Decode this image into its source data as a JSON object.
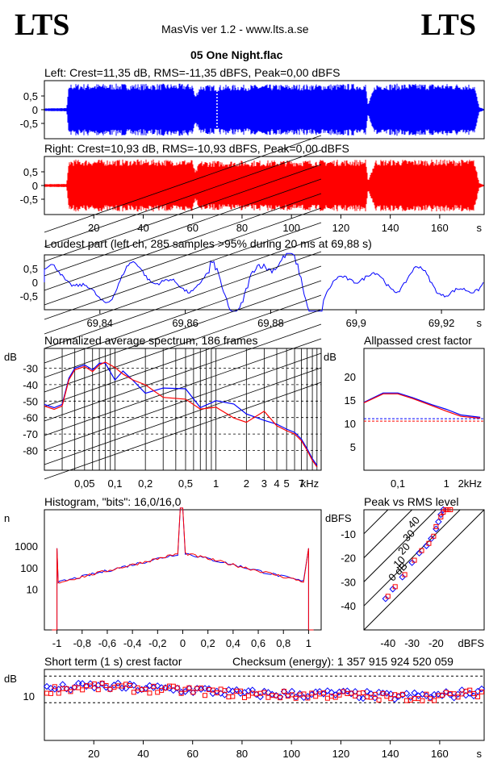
{
  "header": {
    "logo_left": "LTS",
    "logo_right": "LTS",
    "app_title": "MasVis ver 1.2 - www.lts.a.se",
    "file_title": "05 One Night.flac"
  },
  "colors": {
    "left": "#0000ff",
    "right": "#ff0000",
    "axis": "#000000"
  },
  "chart_data": [
    {
      "type": "area",
      "title": "Left: Crest=11,35 dB, RMS=-11,35 dBFS, Peak=0,00 dBFS",
      "ylim": [
        -1,
        1
      ],
      "y_ticks": [
        "0,5",
        "0",
        "-0,5"
      ],
      "x_range_s": [
        0,
        178
      ],
      "loudest_marker_s": 69.88,
      "envelope": [
        {
          "t": 0,
          "amp": 0.05
        },
        {
          "t": 9,
          "amp": 0.06
        },
        {
          "t": 10,
          "amp": 0.95
        },
        {
          "t": 60,
          "amp": 0.95
        },
        {
          "t": 61,
          "amp": 0.5
        },
        {
          "t": 63,
          "amp": 0.9
        },
        {
          "t": 130,
          "amp": 0.95
        },
        {
          "t": 131,
          "amp": 0.2
        },
        {
          "t": 134,
          "amp": 0.95
        },
        {
          "t": 174,
          "amp": 0.95
        },
        {
          "t": 176,
          "amp": 0.1
        },
        {
          "t": 178,
          "amp": 0.02
        }
      ]
    },
    {
      "type": "area",
      "title": "Right: Crest=10,93 dB, RMS=-10,93 dBFS, Peak=0,00 dBFS",
      "ylim": [
        -1,
        1
      ],
      "y_ticks": [
        "0,5",
        "0",
        "-0,5"
      ],
      "x_range_s": [
        0,
        178
      ],
      "x_ticks": [
        "20",
        "40",
        "60",
        "80",
        "100",
        "120",
        "140",
        "160"
      ],
      "x_unit": "s",
      "envelope": [
        {
          "t": 0,
          "amp": 0.05
        },
        {
          "t": 9,
          "amp": 0.06
        },
        {
          "t": 10,
          "amp": 0.95
        },
        {
          "t": 60,
          "amp": 0.95
        },
        {
          "t": 61,
          "amp": 0.5
        },
        {
          "t": 63,
          "amp": 0.9
        },
        {
          "t": 130,
          "amp": 0.95
        },
        {
          "t": 131,
          "amp": 0.2
        },
        {
          "t": 134,
          "amp": 0.95
        },
        {
          "t": 174,
          "amp": 0.95
        },
        {
          "t": 176,
          "amp": 0.1
        },
        {
          "t": 178,
          "amp": 0.02
        }
      ]
    },
    {
      "type": "line",
      "title": "Loudest part (left  ch, 285 samples >95% during 20 ms at 69,88 s)",
      "ylim": [
        -1,
        1
      ],
      "y_ticks": [
        "0,5",
        "0",
        "-0,5"
      ],
      "x_range": [
        69.827,
        69.93
      ],
      "x_ticks": [
        "69,84",
        "69,86",
        "69,88",
        "69,9",
        "69,92"
      ],
      "x_unit": "s"
    },
    {
      "type": "line",
      "title": "Normalized average spectrum, 186 frames",
      "ylabel": "dB",
      "y_ticks": [
        "-30",
        "-40",
        "-50",
        "-60",
        "-70",
        "-80"
      ],
      "x_ticks": [
        "0,05",
        "0,1",
        "0,2",
        "0,5",
        "1",
        "2",
        "3",
        "4",
        "5",
        "7"
      ],
      "x_unit": "kHz",
      "x_range_khz": [
        0.02,
        11
      ],
      "series": [
        {
          "name": "",
          "points": [
            [
              0.02,
              -52
            ],
            [
              0.025,
              -54
            ],
            [
              0.03,
              -52
            ],
            [
              0.035,
              -36
            ],
            [
              0.04,
              -30
            ],
            [
              0.05,
              -28
            ],
            [
              0.06,
              -31
            ],
            [
              0.07,
              -27
            ],
            [
              0.08,
              -28
            ],
            [
              0.1,
              -33
            ],
            [
              0.12,
              -36
            ],
            [
              0.15,
              -40
            ],
            [
              0.2,
              -43
            ],
            [
              0.3,
              -45
            ],
            [
              0.5,
              -47
            ],
            [
              0.7,
              -50
            ],
            [
              1,
              -52
            ],
            [
              1.5,
              -55
            ],
            [
              2,
              -57
            ],
            [
              3,
              -60
            ],
            [
              4,
              -64
            ],
            [
              5,
              -67
            ],
            [
              6,
              -69
            ],
            [
              7,
              -73
            ],
            [
              8,
              -79
            ],
            [
              9,
              -85
            ],
            [
              10,
              -89
            ]
          ]
        },
        {
          "name": "",
          "points": [
            [
              0.02,
              -53
            ],
            [
              0.025,
              -55
            ],
            [
              0.03,
              -53
            ],
            [
              0.035,
              -37
            ],
            [
              0.04,
              -31
            ],
            [
              0.05,
              -29
            ],
            [
              0.06,
              -32
            ],
            [
              0.07,
              -28
            ],
            [
              0.08,
              -29
            ],
            [
              0.1,
              -34
            ],
            [
              0.12,
              -37
            ],
            [
              0.15,
              -41
            ],
            [
              0.2,
              -44
            ],
            [
              0.3,
              -46
            ],
            [
              0.5,
              -48
            ],
            [
              0.7,
              -51
            ],
            [
              1,
              -53
            ],
            [
              1.5,
              -56
            ],
            [
              2,
              -58
            ],
            [
              3,
              -61
            ],
            [
              4,
              -65
            ],
            [
              5,
              -68
            ],
            [
              6,
              -70
            ],
            [
              7,
              -74
            ],
            [
              8,
              -80
            ],
            [
              9,
              -86
            ],
            [
              10,
              -90
            ]
          ]
        }
      ]
    },
    {
      "type": "line",
      "title": "Allpassed crest factor",
      "ylabel": "dB",
      "y_ticks": [
        "20",
        "15",
        "10",
        "5"
      ],
      "ylim": [
        0,
        26
      ],
      "x_ticks": [
        "0,1",
        "1",
        "2"
      ],
      "x_unit": "kHz",
      "reference_db": 11,
      "series": [
        {
          "name": "",
          "points": [
            [
              0.02,
              14.5
            ],
            [
              0.05,
              16.5
            ],
            [
              0.1,
              16.5
            ],
            [
              0.2,
              15.5
            ],
            [
              0.5,
              14
            ],
            [
              1,
              13
            ],
            [
              2,
              11.8
            ],
            [
              5,
              11.3
            ]
          ]
        },
        {
          "name": "",
          "points": [
            [
              0.02,
              14.4
            ],
            [
              0.05,
              16.3
            ],
            [
              0.1,
              16.3
            ],
            [
              0.2,
              15.3
            ],
            [
              0.5,
              13.8
            ],
            [
              1,
              12.6
            ],
            [
              2,
              11.5
            ],
            [
              5,
              11.1
            ]
          ]
        }
      ]
    },
    {
      "type": "line",
      "title": "Histogram, \"bits\": 16,0/16,0",
      "ylabel": "n",
      "y_ticks": [
        "1000",
        "100",
        "10"
      ],
      "x_ticks": [
        "-1",
        "-0,8",
        "-0,6",
        "-0,4",
        "-0,2",
        "0",
        "0,2",
        "0,4",
        "0,6",
        "0,8",
        "1"
      ],
      "log_y": true
    },
    {
      "type": "scatter",
      "title": "Peak vs RMS level",
      "ylabel": "dBFS",
      "xlabel": "dBFS",
      "y_ticks": [
        "-10",
        "-20",
        "-30",
        "-40"
      ],
      "x_ticks": [
        "-40",
        "-30",
        "-20"
      ],
      "diagonal_labels": [
        "40",
        "30",
        "20",
        "10",
        "0 dB"
      ],
      "series": [
        {
          "name": "",
          "points": [
            [
              -41,
              -37
            ],
            [
              -38,
              -33
            ],
            [
              -34,
              -28
            ],
            [
              -30,
              -22
            ],
            [
              -27,
              -18
            ],
            [
              -24,
              -15
            ],
            [
              -22,
              -12
            ],
            [
              -20,
              -8
            ],
            [
              -19,
              -5
            ],
            [
              -18,
              -2
            ],
            [
              -17,
              0
            ]
          ]
        },
        {
          "name": "",
          "points": [
            [
              -40,
              -36
            ],
            [
              -37,
              -32
            ],
            [
              -33,
              -27
            ],
            [
              -29,
              -21
            ],
            [
              -26,
              -17
            ],
            [
              -23,
              -14
            ],
            [
              -21,
              -11
            ],
            [
              -20,
              -7
            ],
            [
              -18,
              -3
            ],
            [
              -17,
              -1
            ],
            [
              -16,
              0
            ],
            [
              -15,
              0
            ],
            [
              -14,
              0
            ]
          ]
        }
      ]
    },
    {
      "type": "scatter",
      "title": "Short term (1 s) crest factor",
      "checksum": "Checksum (energy):  1 357 915 924 520 059",
      "ylabel": "dB",
      "y_ticks": [
        "10"
      ],
      "x_ticks": [
        "20",
        "40",
        "60",
        "80",
        "100",
        "120",
        "140",
        "160"
      ],
      "x_unit": "s",
      "x_range_s": [
        0,
        178
      ],
      "profile": [
        {
          "t": 0,
          "db": 11.5
        },
        {
          "t": 20,
          "db": 12.3
        },
        {
          "t": 40,
          "db": 11.8
        },
        {
          "t": 60,
          "db": 11.4
        },
        {
          "t": 80,
          "db": 10.6
        },
        {
          "t": 100,
          "db": 10.4
        },
        {
          "t": 120,
          "db": 10.5
        },
        {
          "t": 140,
          "db": 9.9
        },
        {
          "t": 160,
          "db": 10.1
        },
        {
          "t": 178,
          "db": 11.0
        }
      ]
    }
  ]
}
